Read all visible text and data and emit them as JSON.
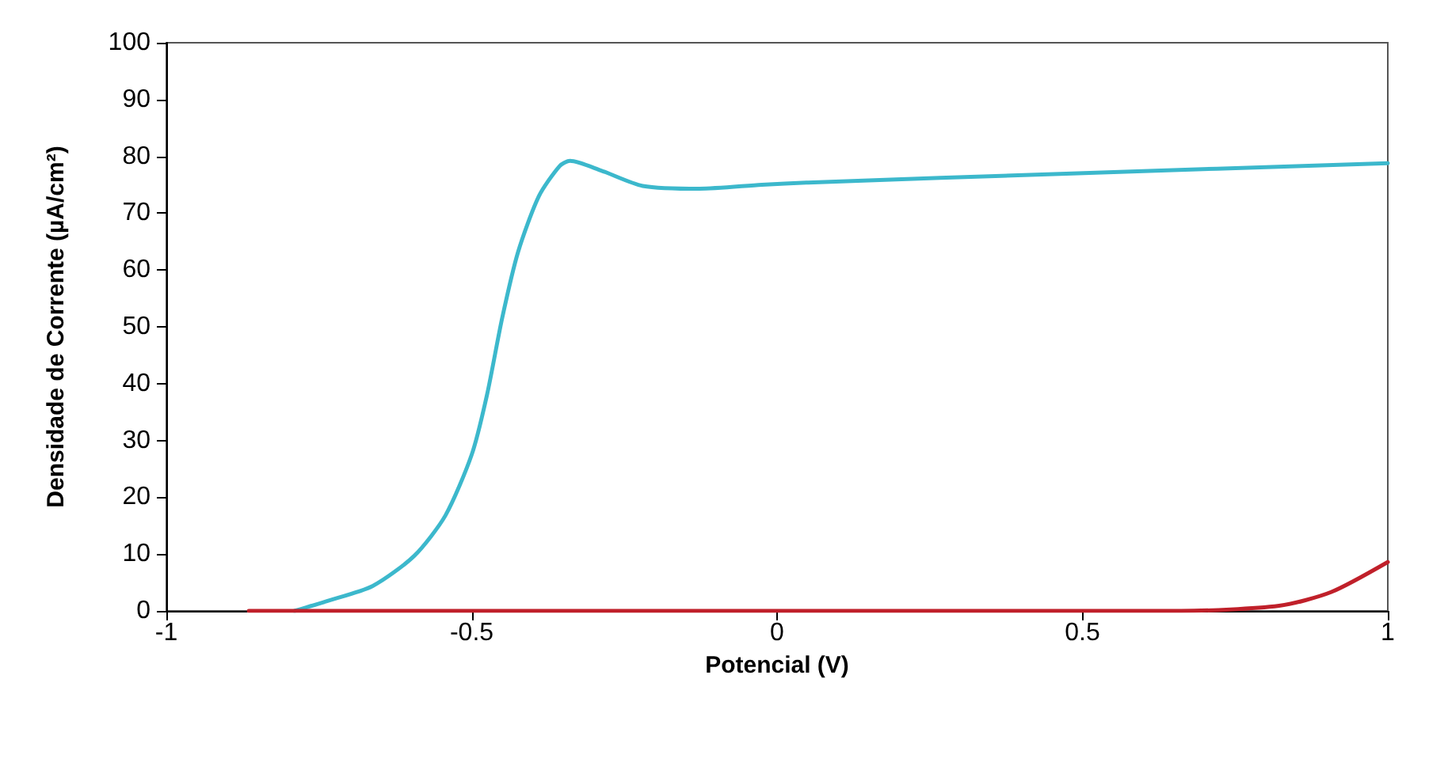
{
  "chart_data": {
    "type": "line",
    "xlabel": "Potencial (V)",
    "ylabel": "Densidade de Corrente (µA/cm²)",
    "xlim": [
      -1,
      1
    ],
    "xticks": [
      -1,
      -0.5,
      0,
      0.5,
      1
    ],
    "ylim": [
      0,
      100
    ],
    "yticks": [
      0,
      10,
      20,
      30,
      40,
      50,
      60,
      70,
      80,
      90,
      100
    ],
    "grid": false,
    "marker": "none",
    "line_style": "solid",
    "series": [
      {
        "color": "#3cb8cc",
        "x": [
          -0.79,
          -0.738,
          -0.662,
          -0.594,
          -0.543,
          -0.5,
          -0.475,
          -0.45,
          -0.424,
          -0.39,
          -0.356,
          -0.339,
          -0.288,
          -0.22,
          -0.127,
          -0.025,
          0.051,
          0.483,
          1
        ],
        "values": [
          0,
          1.7,
          4.4,
          9.7,
          16.8,
          27.5,
          38,
          51.6,
          63.2,
          73,
          78.3,
          79.2,
          77.5,
          74.8,
          74.3,
          75,
          75.4,
          77,
          78.8
        ]
      },
      {
        "color": "#c0202a",
        "x": [
          -0.865,
          0.662,
          0.822,
          0.907,
          1
        ],
        "values": [
          0,
          0,
          0.9,
          3.3,
          8.6
        ]
      }
    ]
  }
}
